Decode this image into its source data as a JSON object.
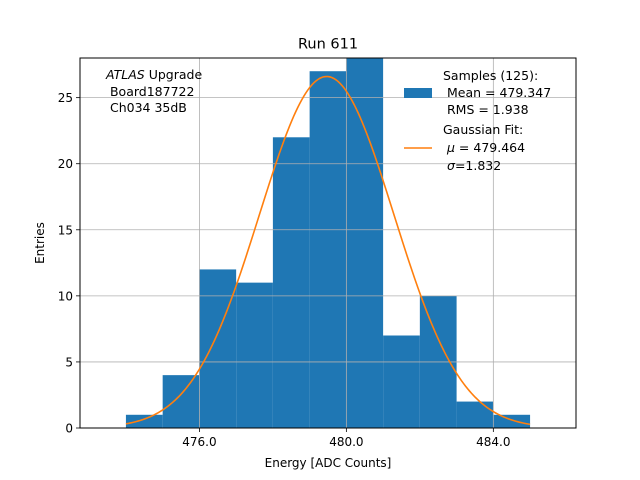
{
  "chart_data": {
    "type": "bar",
    "title": "Run 611",
    "xlabel": "Energy [ADC Counts]",
    "ylabel": "Entries",
    "xlim": [
      472.75,
      486.25
    ],
    "ylim": [
      0,
      28
    ],
    "xticks": [
      476,
      480,
      484
    ],
    "xtick_labels": [
      "476.0",
      "480.0",
      "484.0"
    ],
    "yticks": [
      0,
      5,
      10,
      15,
      20,
      25
    ],
    "ytick_labels": [
      "0",
      "5",
      "10",
      "15",
      "20",
      "25"
    ],
    "grid": true,
    "bin_edges": [
      474,
      475,
      476,
      477,
      478,
      479,
      480,
      481,
      482,
      483,
      484,
      485
    ],
    "counts": [
      1,
      4,
      12,
      11,
      22,
      27,
      28,
      7,
      10,
      2,
      1
    ],
    "bar_color": "#1f77b4",
    "fit": {
      "name": "Gaussian Fit",
      "amplitude": 26.6,
      "mu": 479.464,
      "sigma": 1.832,
      "x_range": [
        474,
        485
      ],
      "color": "#ff7f0e"
    },
    "annotation": {
      "line1_italic": "ATLAS",
      "line1_rest": " Upgrade",
      "line2": " Board187722",
      "line3": " Ch034 35dB"
    },
    "legend": {
      "position": "top-right",
      "samples_title": "Samples (125):",
      "samples_mean": " Mean = 479.347",
      "samples_rms": " RMS = 1.938",
      "fit_title": "Gaussian Fit:",
      "fit_mu_sym": "μ",
      "fit_mu_val": " = 479.464",
      "fit_sigma_sym": "σ",
      "fit_sigma_val": "=1.832"
    }
  }
}
